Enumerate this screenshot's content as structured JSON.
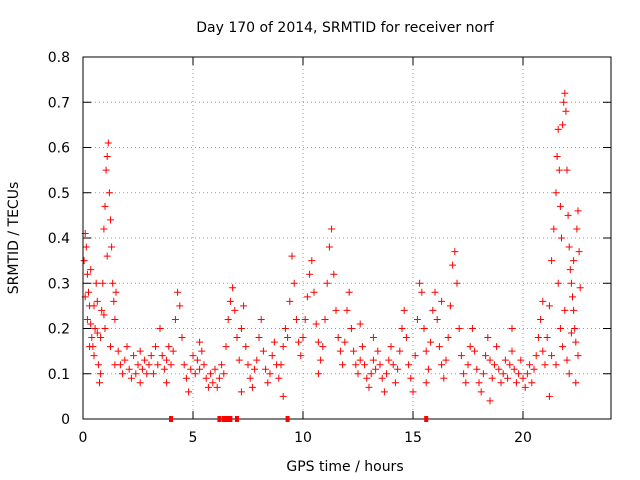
{
  "chart_data": {
    "type": "scatter",
    "title": "Day 170 of 2014, SRMTID for receiver norf",
    "xlabel": "GPS time / hours",
    "ylabel": "SRMTID / TECUs",
    "xlim": [
      0,
      24
    ],
    "ylim": [
      0,
      0.8
    ],
    "xticks": [
      0,
      5,
      10,
      15,
      20
    ],
    "yticks": [
      0,
      0.1,
      0.2,
      0.3,
      0.4,
      0.5,
      0.6,
      0.7,
      0.8
    ],
    "xtick_labels": [
      "0",
      "5",
      "10",
      "15",
      "20"
    ],
    "ytick_labels": [
      "0",
      "0.1",
      "0.2",
      "0.3",
      "0.4",
      "0.5",
      "0.6",
      "0.7",
      "0.8"
    ],
    "grid": true,
    "marker": "+",
    "color": "#ff0000",
    "series": [
      {
        "name": "SRMTID",
        "points": [
          [
            0.05,
            0.35
          ],
          [
            0.1,
            0.41
          ],
          [
            0.15,
            0.38
          ],
          [
            0.2,
            0.32
          ],
          [
            0.25,
            0.28
          ],
          [
            0.3,
            0.25
          ],
          [
            0.35,
            0.21
          ],
          [
            0.4,
            0.18
          ],
          [
            0.45,
            0.16
          ],
          [
            0.5,
            0.14
          ],
          [
            0.55,
            0.2
          ],
          [
            0.6,
            0.3
          ],
          [
            0.65,
            0.26
          ],
          [
            0.7,
            0.12
          ],
          [
            0.75,
            0.08
          ],
          [
            0.8,
            0.18
          ],
          [
            0.85,
            0.24
          ],
          [
            0.9,
            0.3
          ],
          [
            0.95,
            0.42
          ],
          [
            1.0,
            0.47
          ],
          [
            1.05,
            0.55
          ],
          [
            1.1,
            0.58
          ],
          [
            1.15,
            0.61
          ],
          [
            1.2,
            0.5
          ],
          [
            1.25,
            0.44
          ],
          [
            1.3,
            0.38
          ],
          [
            1.35,
            0.3
          ],
          [
            1.4,
            0.26
          ],
          [
            1.45,
            0.22
          ],
          [
            1.5,
            0.28
          ],
          [
            0.2,
            0.22
          ],
          [
            0.35,
            0.33
          ],
          [
            0.5,
            0.25
          ],
          [
            0.65,
            0.19
          ],
          [
            0.8,
            0.1
          ],
          [
            0.95,
            0.23
          ],
          [
            1.1,
            0.36
          ],
          [
            1.25,
            0.16
          ],
          [
            1.45,
            0.12
          ],
          [
            0.1,
            0.27
          ],
          [
            1.6,
            0.15
          ],
          [
            1.7,
            0.12
          ],
          [
            1.8,
            0.1
          ],
          [
            1.9,
            0.13
          ],
          [
            2.0,
            0.16
          ],
          [
            2.1,
            0.11
          ],
          [
            2.2,
            0.09
          ],
          [
            2.3,
            0.14
          ],
          [
            2.4,
            0.1
          ],
          [
            2.5,
            0.12
          ],
          [
            2.6,
            0.15
          ],
          [
            2.7,
            0.11
          ],
          [
            2.8,
            0.13
          ],
          [
            2.9,
            0.1
          ],
          [
            3.0,
            0.12
          ],
          [
            3.1,
            0.14
          ],
          [
            3.2,
            0.1
          ],
          [
            3.3,
            0.16
          ],
          [
            3.4,
            0.12
          ],
          [
            3.5,
            0.2
          ],
          [
            3.6,
            0.14
          ],
          [
            3.7,
            0.11
          ],
          [
            3.8,
            0.13
          ],
          [
            3.9,
            0.16
          ],
          [
            4.0,
            0.12
          ],
          [
            4.1,
            0.15
          ],
          [
            4.2,
            0.22
          ],
          [
            4.3,
            0.28
          ],
          [
            4.4,
            0.25
          ],
          [
            4.5,
            0.18
          ],
          [
            4.6,
            0.12
          ],
          [
            4.7,
            0.09
          ],
          [
            4.8,
            0.06
          ],
          [
            4.9,
            0.11
          ],
          [
            5.0,
            0.14
          ],
          [
            5.1,
            0.1
          ],
          [
            5.2,
            0.13
          ],
          [
            5.3,
            0.11
          ],
          [
            5.4,
            0.15
          ],
          [
            5.5,
            0.12
          ],
          [
            5.6,
            0.09
          ],
          [
            5.7,
            0.07
          ],
          [
            5.8,
            0.1
          ],
          [
            5.9,
            0.08
          ],
          [
            6.0,
            0.11
          ],
          [
            6.1,
            0.07
          ],
          [
            6.2,
            0.09
          ],
          [
            6.3,
            0.12
          ],
          [
            6.4,
            0.1
          ],
          [
            6.5,
            0.16
          ],
          [
            6.6,
            0.22
          ],
          [
            6.7,
            0.26
          ],
          [
            6.8,
            0.29
          ],
          [
            6.9,
            0.24
          ],
          [
            7.0,
            0.18
          ],
          [
            7.1,
            0.13
          ],
          [
            7.2,
            0.2
          ],
          [
            7.3,
            0.25
          ],
          [
            7.4,
            0.16
          ],
          [
            7.5,
            0.12
          ],
          [
            7.6,
            0.09
          ],
          [
            7.7,
            0.07
          ],
          [
            7.8,
            0.11
          ],
          [
            7.9,
            0.13
          ],
          [
            8.0,
            0.18
          ],
          [
            8.1,
            0.22
          ],
          [
            8.2,
            0.15
          ],
          [
            8.3,
            0.11
          ],
          [
            8.4,
            0.08
          ],
          [
            8.5,
            0.1
          ],
          [
            8.6,
            0.14
          ],
          [
            8.7,
            0.17
          ],
          [
            8.8,
            0.12
          ],
          [
            8.9,
            0.09
          ],
          [
            9.0,
            0.12
          ],
          [
            9.1,
            0.16
          ],
          [
            9.2,
            0.2
          ],
          [
            9.3,
            0.18
          ],
          [
            9.4,
            0.26
          ],
          [
            9.5,
            0.36
          ],
          [
            9.6,
            0.3
          ],
          [
            9.7,
            0.22
          ],
          [
            9.8,
            0.17
          ],
          [
            9.9,
            0.14
          ],
          [
            10.0,
            0.18
          ],
          [
            10.1,
            0.22
          ],
          [
            10.2,
            0.27
          ],
          [
            10.3,
            0.32
          ],
          [
            10.4,
            0.35
          ],
          [
            10.5,
            0.28
          ],
          [
            10.6,
            0.21
          ],
          [
            10.7,
            0.17
          ],
          [
            10.8,
            0.13
          ],
          [
            10.9,
            0.16
          ],
          [
            11.0,
            0.22
          ],
          [
            11.1,
            0.3
          ],
          [
            11.2,
            0.38
          ],
          [
            11.3,
            0.42
          ],
          [
            11.4,
            0.32
          ],
          [
            11.5,
            0.24
          ],
          [
            11.6,
            0.18
          ],
          [
            11.7,
            0.15
          ],
          [
            11.8,
            0.12
          ],
          [
            11.9,
            0.17
          ],
          [
            12.0,
            0.24
          ],
          [
            12.1,
            0.28
          ],
          [
            12.2,
            0.2
          ],
          [
            12.3,
            0.15
          ],
          [
            12.4,
            0.12
          ],
          [
            12.5,
            0.1
          ],
          [
            12.6,
            0.13
          ],
          [
            12.7,
            0.16
          ],
          [
            12.8,
            0.12
          ],
          [
            12.9,
            0.09
          ],
          [
            13.0,
            0.07
          ],
          [
            13.1,
            0.1
          ],
          [
            13.2,
            0.13
          ],
          [
            13.3,
            0.11
          ],
          [
            13.4,
            0.15
          ],
          [
            13.5,
            0.12
          ],
          [
            13.6,
            0.09
          ],
          [
            13.7,
            0.06
          ],
          [
            13.8,
            0.1
          ],
          [
            13.9,
            0.13
          ],
          [
            14.0,
            0.16
          ],
          [
            14.1,
            0.12
          ],
          [
            14.2,
            0.08
          ],
          [
            14.3,
            0.11
          ],
          [
            14.4,
            0.15
          ],
          [
            14.5,
            0.2
          ],
          [
            14.6,
            0.24
          ],
          [
            14.7,
            0.18
          ],
          [
            14.8,
            0.12
          ],
          [
            14.9,
            0.09
          ],
          [
            15.0,
            0.06
          ],
          [
            15.1,
            0.14
          ],
          [
            15.2,
            0.22
          ],
          [
            15.3,
            0.3
          ],
          [
            15.4,
            0.28
          ],
          [
            15.5,
            0.2
          ],
          [
            15.6,
            0.15
          ],
          [
            15.7,
            0.11
          ],
          [
            15.8,
            0.17
          ],
          [
            15.9,
            0.24
          ],
          [
            16.0,
            0.28
          ],
          [
            16.1,
            0.22
          ],
          [
            16.2,
            0.16
          ],
          [
            16.3,
            0.12
          ],
          [
            16.4,
            0.09
          ],
          [
            16.5,
            0.13
          ],
          [
            16.6,
            0.18
          ],
          [
            16.7,
            0.25
          ],
          [
            16.8,
            0.34
          ],
          [
            16.9,
            0.37
          ],
          [
            17.0,
            0.3
          ],
          [
            17.1,
            0.2
          ],
          [
            17.2,
            0.14
          ],
          [
            17.3,
            0.1
          ],
          [
            17.4,
            0.08
          ],
          [
            17.5,
            0.12
          ],
          [
            17.6,
            0.16
          ],
          [
            17.7,
            0.2
          ],
          [
            17.8,
            0.15
          ],
          [
            17.9,
            0.11
          ],
          [
            18.0,
            0.08
          ],
          [
            18.1,
            0.06
          ],
          [
            18.2,
            0.1
          ],
          [
            18.3,
            0.14
          ],
          [
            18.4,
            0.18
          ],
          [
            18.5,
            0.13
          ],
          [
            18.6,
            0.09
          ],
          [
            18.7,
            0.12
          ],
          [
            18.8,
            0.16
          ],
          [
            18.9,
            0.11
          ],
          [
            19.0,
            0.08
          ],
          [
            19.1,
            0.1
          ],
          [
            19.2,
            0.13
          ],
          [
            19.3,
            0.09
          ],
          [
            19.4,
            0.12
          ],
          [
            19.5,
            0.15
          ],
          [
            19.6,
            0.11
          ],
          [
            19.7,
            0.08
          ],
          [
            19.8,
            0.1
          ],
          [
            19.9,
            0.13
          ],
          [
            20.0,
            0.09
          ],
          [
            20.1,
            0.07
          ],
          [
            20.2,
            0.1
          ],
          [
            20.3,
            0.12
          ],
          [
            20.4,
            0.08
          ],
          [
            20.5,
            0.11
          ],
          [
            20.6,
            0.14
          ],
          [
            20.7,
            0.18
          ],
          [
            20.8,
            0.22
          ],
          [
            20.9,
            0.15
          ],
          [
            21.0,
            0.12
          ],
          [
            21.1,
            0.18
          ],
          [
            21.2,
            0.25
          ],
          [
            21.3,
            0.35
          ],
          [
            21.4,
            0.42
          ],
          [
            21.5,
            0.5
          ],
          [
            21.55,
            0.58
          ],
          [
            21.6,
            0.64
          ],
          [
            21.65,
            0.55
          ],
          [
            21.7,
            0.47
          ],
          [
            21.75,
            0.4
          ],
          [
            21.8,
            0.65
          ],
          [
            21.85,
            0.7
          ],
          [
            21.9,
            0.72
          ],
          [
            21.95,
            0.68
          ],
          [
            22.0,
            0.55
          ],
          [
            22.05,
            0.45
          ],
          [
            22.1,
            0.38
          ],
          [
            22.15,
            0.33
          ],
          [
            22.2,
            0.3
          ],
          [
            22.25,
            0.27
          ],
          [
            22.3,
            0.24
          ],
          [
            22.35,
            0.2
          ],
          [
            22.4,
            0.17
          ],
          [
            22.45,
            0.42
          ],
          [
            22.5,
            0.46
          ],
          [
            22.55,
            0.37
          ],
          [
            22.6,
            0.29
          ],
          [
            21.6,
            0.3
          ],
          [
            21.7,
            0.2
          ],
          [
            21.8,
            0.16
          ],
          [
            21.9,
            0.24
          ],
          [
            22.0,
            0.13
          ],
          [
            22.1,
            0.1
          ],
          [
            22.2,
            0.19
          ],
          [
            22.3,
            0.35
          ],
          [
            21.2,
            0.05
          ],
          [
            21.5,
            0.12
          ],
          [
            22.4,
            0.08
          ],
          [
            22.5,
            0.14
          ],
          [
            20.9,
            0.26
          ],
          [
            21.3,
            0.14
          ],
          [
            0.3,
            0.16
          ],
          [
            1.0,
            0.2
          ],
          [
            3.8,
            0.08
          ],
          [
            7.2,
            0.06
          ],
          [
            9.1,
            0.05
          ],
          [
            12.6,
            0.21
          ],
          [
            13.2,
            0.18
          ],
          [
            15.6,
            0.08
          ],
          [
            16.3,
            0.26
          ],
          [
            18.5,
            0.04
          ],
          [
            19.5,
            0.2
          ],
          [
            10.7,
            0.1
          ],
          [
            5.3,
            0.17
          ],
          [
            2.6,
            0.08
          ]
        ]
      }
    ],
    "axis_marks": [
      4.0,
      6.2,
      6.4,
      6.5,
      6.6,
      6.7,
      7.0,
      9.3,
      15.6
    ]
  }
}
